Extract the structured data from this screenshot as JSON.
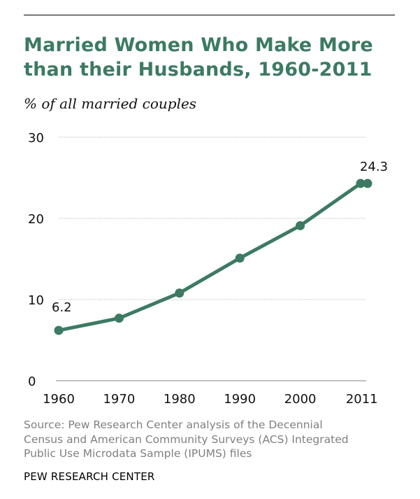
{
  "header": {
    "title_line1": "Married Women Who Make More",
    "title_line2": "than their Husbands, 1960-2011",
    "subtitle": "% of all married couples"
  },
  "chart_data": {
    "type": "line",
    "title": "Married Women Who Make More than their Husbands, 1960-2011",
    "ylabel": "% of all married couples",
    "xlabel": "",
    "x": [
      1960,
      1970,
      1980,
      1990,
      2000,
      2010,
      2011
    ],
    "series": [
      {
        "name": "Married women who make more than their husbands",
        "values": [
          6.2,
          7.7,
          10.8,
          15.1,
          19.1,
          24.3,
          24.3
        ]
      }
    ],
    "xticks": [
      "1960",
      "1970",
      "1980",
      "1990",
      "2000",
      "2011"
    ],
    "yticks": [
      "0",
      "10",
      "20",
      "30"
    ],
    "ylim": [
      0,
      30
    ],
    "grid": "dotted horizontal",
    "data_labels": [
      {
        "text": "6.2",
        "point_index": 0
      },
      {
        "text": "24.3",
        "point_index": 6
      }
    ],
    "line_color": "#3d7a63"
  },
  "footer": {
    "source_line1": "Source: Pew Research Center analysis of the Decennial",
    "source_line2": "Census and American Community Surveys (ACS) Integrated",
    "source_line3": "Public Use Microdata Sample (IPUMS) files",
    "organization": "PEW RESEARCH CENTER"
  },
  "colors": {
    "title": "#3d7a63",
    "series": "#3d7a63",
    "source_text": "#808080"
  }
}
